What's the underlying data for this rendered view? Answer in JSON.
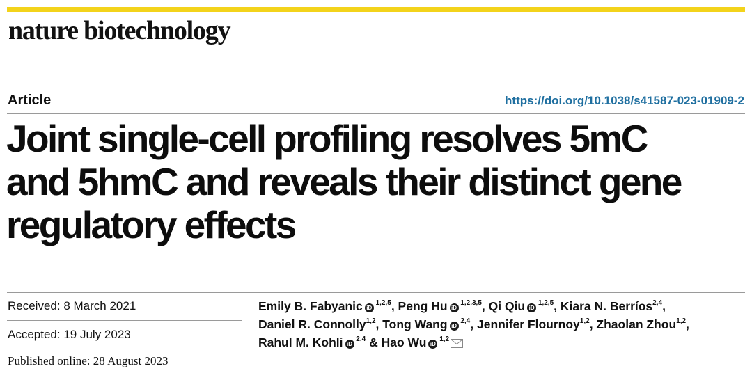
{
  "journal": "nature biotechnology",
  "article_type": "Article",
  "doi": "https://doi.org/10.1038/s41587-023-01909-2",
  "title_lines": [
    "Joint single-cell profiling resolves 5mC",
    "and 5hmC and reveals their distinct gene",
    "regulatory effects"
  ],
  "dates": {
    "received": "Received: 8 March 2021",
    "accepted": "Accepted: 19 July 2023",
    "published": "Published online: 28 August 2023"
  },
  "authors": [
    {
      "name": "Emily B. Fabyanic",
      "orcid": true,
      "aff": "1,2,5"
    },
    {
      "name": "Peng Hu",
      "orcid": true,
      "aff": "1,2,3,5"
    },
    {
      "name": "Qi Qiu",
      "orcid": true,
      "aff": "1,2,5"
    },
    {
      "name": "Kiara N. Berríos",
      "orcid": false,
      "aff": "2,4"
    },
    {
      "name": "Daniel R. Connolly",
      "orcid": false,
      "aff": "1,2"
    },
    {
      "name": "Tong Wang",
      "orcid": true,
      "aff": "2,4"
    },
    {
      "name": "Jennifer Flournoy",
      "orcid": false,
      "aff": "1,2"
    },
    {
      "name": "Zhaolan Zhou",
      "orcid": false,
      "aff": "1,2"
    },
    {
      "name": "Rahul M. Kohli",
      "orcid": true,
      "aff": "2,4"
    },
    {
      "name": "Hao Wu",
      "orcid": true,
      "aff": "1,2",
      "corresponding": true
    }
  ],
  "colors": {
    "accent_bar": "#f3d31b",
    "doi_link": "#1f6fa0"
  }
}
